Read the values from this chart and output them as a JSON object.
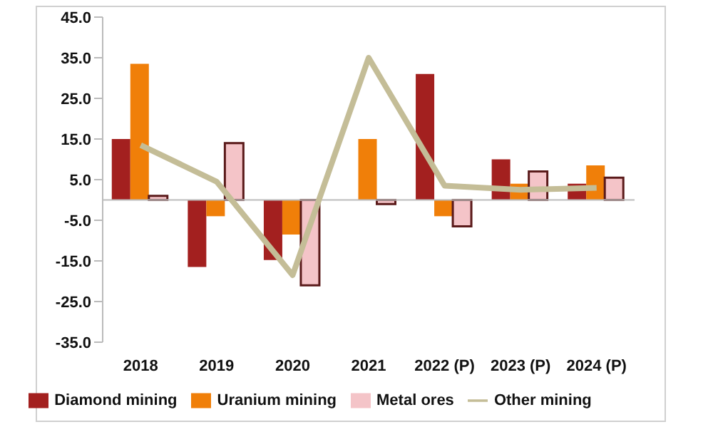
{
  "chart_data": {
    "type": "bar",
    "categories": [
      "2018",
      "2019",
      "2020",
      "2021",
      "2022 (P)",
      "2023 (P)",
      "2024 (P)"
    ],
    "series": [
      {
        "name": "Diamond mining",
        "color": "#a3201f",
        "values": [
          15.0,
          -16.5,
          -14.8,
          null,
          31.0,
          10.0,
          4.0
        ]
      },
      {
        "name": "Uranium mining",
        "color": "#f07f09",
        "values": [
          33.5,
          -4.0,
          -8.5,
          15.0,
          -4.0,
          4.0,
          8.5
        ]
      },
      {
        "name": "Metal ores",
        "color": "#f4c4c8",
        "values": [
          1.0,
          14.0,
          -21.0,
          -1.0,
          -6.5,
          7.0,
          5.5
        ]
      },
      {
        "name": "Other mining",
        "type": "line",
        "color": "#c4bd97",
        "values": [
          13.5,
          4.5,
          -18.5,
          35.0,
          3.5,
          2.5,
          3.0
        ]
      }
    ],
    "ylim": [
      -35,
      45
    ],
    "yticks": [
      {
        "value": -35,
        "label": "-35.0"
      },
      {
        "value": -25,
        "label": "-25.0"
      },
      {
        "value": -15,
        "label": "-15.0"
      },
      {
        "value": -5,
        "label": "-5.0"
      },
      {
        "value": 5,
        "label": "5.0"
      },
      {
        "value": 15,
        "label": "15.0"
      },
      {
        "value": 25,
        "label": "25.0"
      },
      {
        "value": 35,
        "label": "35.0"
      },
      {
        "value": 45,
        "label": "45.0"
      }
    ],
    "grid": false,
    "legend": "bottom",
    "marker": "none"
  }
}
